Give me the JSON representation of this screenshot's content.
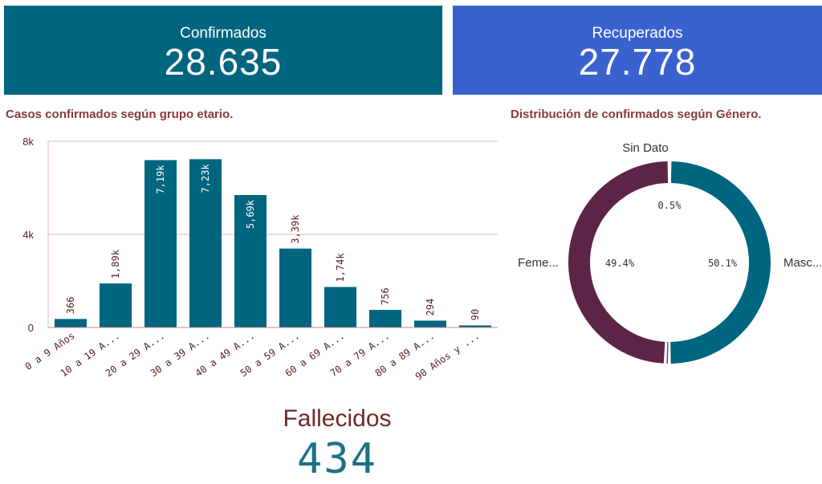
{
  "kpis": {
    "confirmados": {
      "label": "Confirmados",
      "value": "28.635",
      "color": "#00657f"
    },
    "recuperados": {
      "label": "Recuperados",
      "value": "27.778",
      "color": "#3a62cf"
    }
  },
  "bar_section_title": "Casos confirmados según grupo etario.",
  "donut_section_title": "Distribución de confirmados según Género.",
  "fallecidos": {
    "label": "Fallecidos",
    "value": "434"
  },
  "chart_data": [
    {
      "type": "bar",
      "title": "Casos confirmados según grupo etario.",
      "categories": [
        "0 a 9 Años",
        "10 a 19 A...",
        "20 a 29 A...",
        "30 a 39 A...",
        "40 a 49 A...",
        "50 a 59 A...",
        "60 a 69 A...",
        "70 a 79 A...",
        "80 a 89 A...",
        "90 Años y ..."
      ],
      "values": [
        366,
        1890,
        7190,
        7230,
        5690,
        3390,
        1740,
        756,
        294,
        90
      ],
      "value_labels": [
        "366",
        "1,89k",
        "7,19k",
        "7,23k",
        "5,69k",
        "3,39k",
        "1,74k",
        "756",
        "294",
        "90"
      ],
      "yticks": [
        0,
        4000,
        8000
      ],
      "ytick_labels": [
        "0",
        "4k",
        "8k"
      ],
      "ylim": [
        0,
        8000
      ],
      "xlabel": "",
      "ylabel": "",
      "bar_color": "#00657f",
      "grid": true
    },
    {
      "type": "pie",
      "title": "Distribución de confirmados según Género.",
      "slices": [
        {
          "name": "Masc...",
          "value": 50.1,
          "label": "50.1%",
          "color": "#00657f"
        },
        {
          "name": "Sin Dato",
          "value": 0.5,
          "label": "0.5%",
          "color": "#8a3a3a"
        },
        {
          "name": "Feme...",
          "value": 49.4,
          "label": "49.4%",
          "color": "#5e2447"
        }
      ]
    }
  ]
}
